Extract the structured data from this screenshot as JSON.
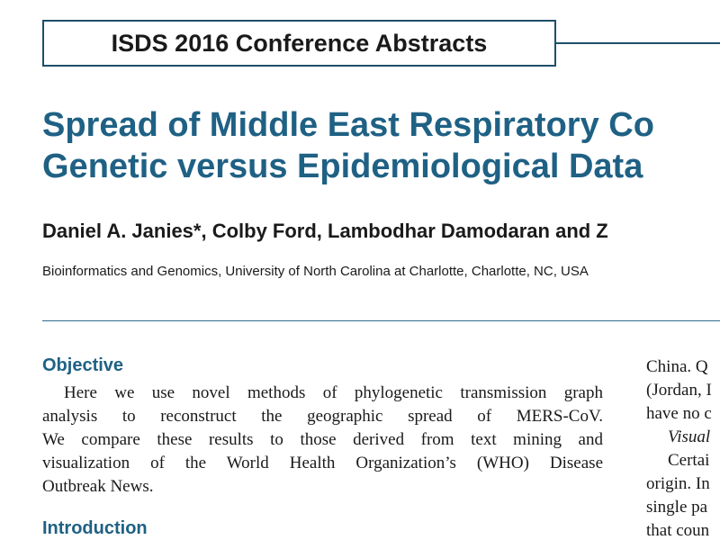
{
  "banner": {
    "label": "ISDS 2016 Conference Abstracts"
  },
  "title": {
    "lines": [
      "Spread of Middle East Respiratory Co",
      "Genetic versus Epidemiological Data"
    ]
  },
  "authors": "Daniel A. Janies*, Colby Ford, Lambodhar Damodaran and Z",
  "affiliation": "Bioinformatics and Genomics, University of North Carolina at Charlotte, Charlotte, NC, USA",
  "left_column": {
    "objective_heading": "Objective",
    "objective_lines": [
      "Here we use novel methods of phylogenetic transmission graph",
      "analysis to reconstruct the geographic spread of MERS-CoV.",
      "We compare these results to those derived from text mining and",
      "visualization of the World Health Organization’s (WHO) Disease",
      "Outbreak News."
    ],
    "introduction_heading": "Introduction"
  },
  "right_column": {
    "lines": [
      "China. Q",
      "(Jordan, I",
      "have no c",
      "Visual",
      "Certai",
      "origin. In",
      "single pa",
      "that coun"
    ]
  }
}
